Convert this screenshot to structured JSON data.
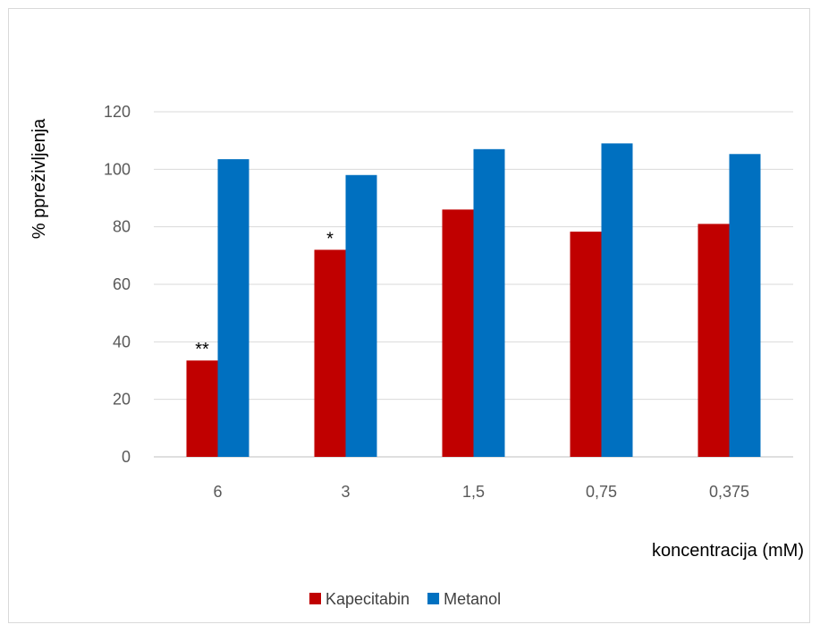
{
  "chart_data": {
    "type": "bar",
    "categories": [
      "6",
      "3",
      "1,5",
      "0,75",
      "0,375"
    ],
    "series": [
      {
        "name": "Kapecitabin",
        "values": [
          33.5,
          72,
          86,
          78.3,
          81
        ],
        "color": "#c00000"
      },
      {
        "name": "Metanol",
        "values": [
          103.5,
          98,
          107,
          109,
          105.3
        ],
        "color": "#0070c0"
      }
    ],
    "xlabel": "koncentracija (mM)",
    "ylabel": "% ppreživljenja",
    "ylim": [
      0,
      120
    ],
    "yticks": [
      0,
      20,
      40,
      60,
      80,
      100,
      120
    ],
    "grid": true,
    "legend_position": "bottom",
    "annotations": [
      {
        "category": "6",
        "series": "Kapecitabin",
        "text": "**"
      },
      {
        "category": "3",
        "series": "Kapecitabin",
        "text": "*"
      }
    ],
    "colors": {
      "gridline": "#d9d9d9",
      "axis": "#bfbfbf"
    }
  }
}
